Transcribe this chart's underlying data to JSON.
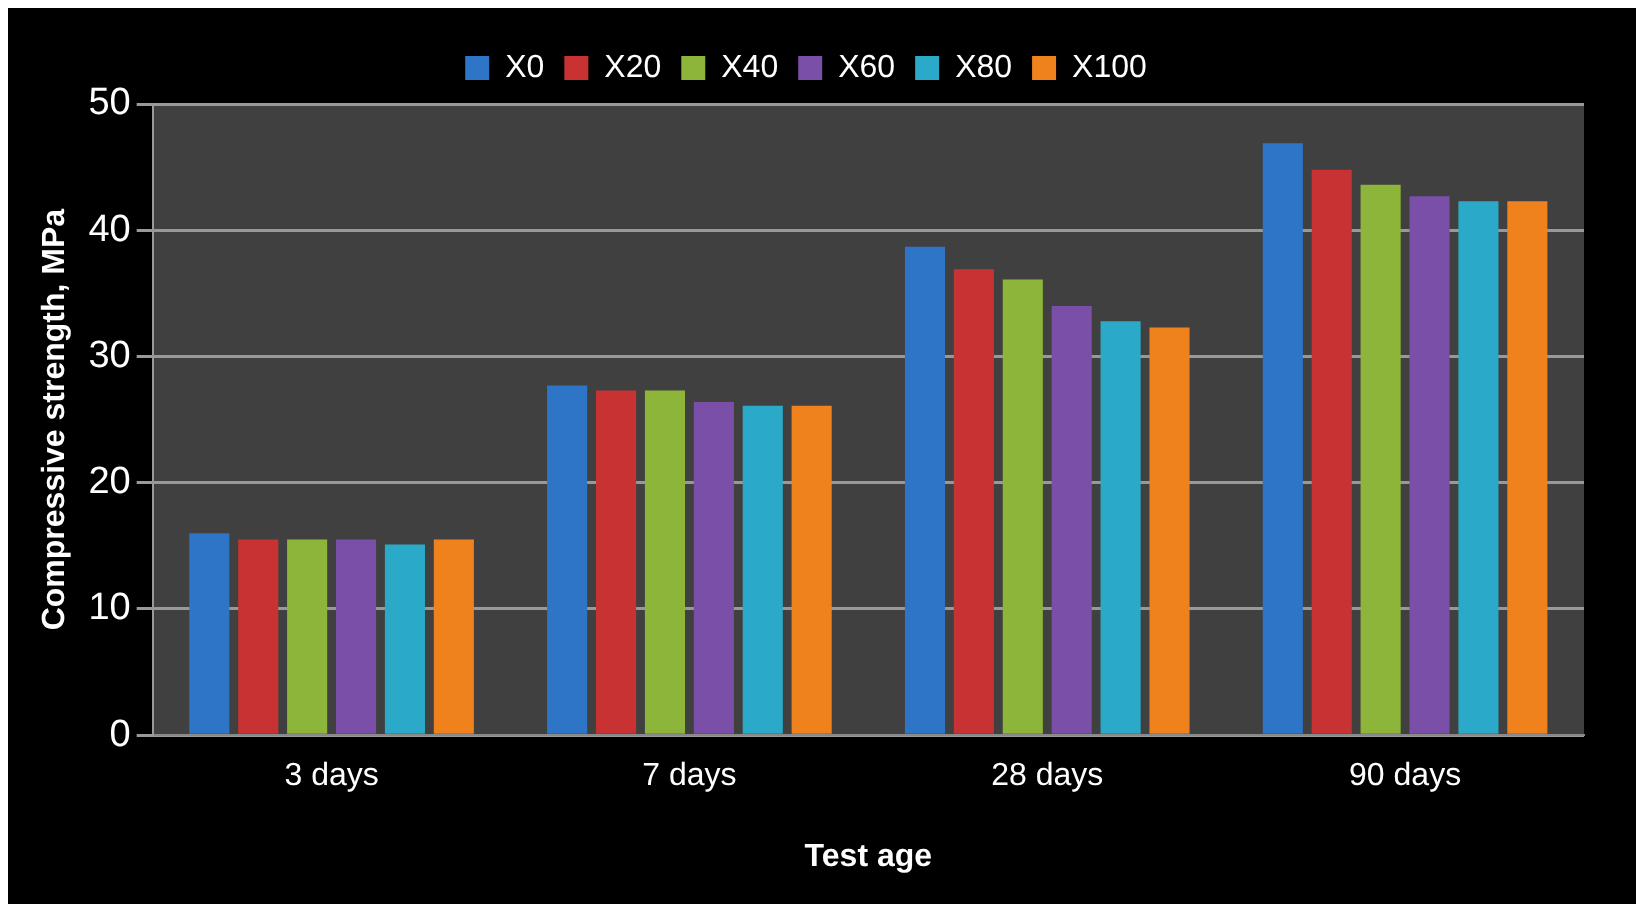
{
  "chart_data": {
    "type": "bar",
    "xlabel": "Test age",
    "ylabel": "Compressive strength, MPa",
    "categories": [
      "3 days",
      "7 days",
      "28 days",
      "90 days"
    ],
    "series": [
      {
        "name": "X0",
        "color": "#2e75c8",
        "values": [
          16.0,
          27.7,
          38.7,
          46.9
        ]
      },
      {
        "name": "X20",
        "color": "#c83232",
        "values": [
          15.5,
          27.3,
          36.9,
          44.8
        ]
      },
      {
        "name": "X40",
        "color": "#8db53a",
        "values": [
          15.5,
          27.3,
          36.1,
          43.6
        ]
      },
      {
        "name": "X60",
        "color": "#7a4fa8",
        "values": [
          15.5,
          26.4,
          34.0,
          42.7
        ]
      },
      {
        "name": "X80",
        "color": "#2aaac8",
        "values": [
          15.1,
          26.1,
          32.8,
          42.3
        ]
      },
      {
        "name": "X100",
        "color": "#f0821e",
        "values": [
          15.5,
          26.1,
          32.3,
          42.3
        ]
      }
    ],
    "ylim": [
      0,
      50
    ],
    "yticks": [
      0,
      10,
      20,
      30,
      40,
      50
    ],
    "grid": "y",
    "legend": "top"
  }
}
